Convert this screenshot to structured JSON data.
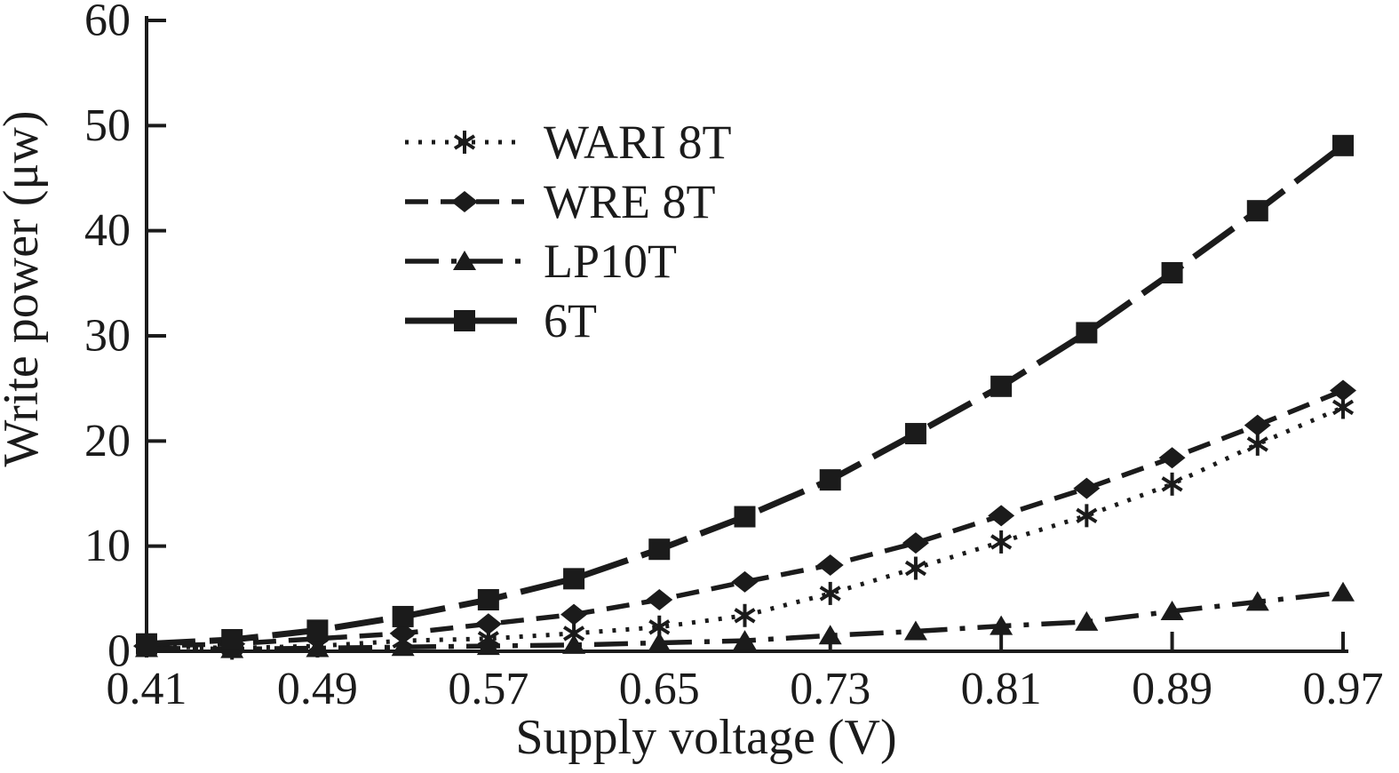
{
  "chart_data": {
    "type": "line",
    "title": "",
    "xlabel": "Supply voltage (V)",
    "ylabel": "Write power (μw)",
    "x": [
      0.41,
      0.45,
      0.49,
      0.53,
      0.57,
      0.61,
      0.65,
      0.69,
      0.73,
      0.77,
      0.81,
      0.85,
      0.89,
      0.93,
      0.97
    ],
    "xlim": [
      0.41,
      0.97
    ],
    "ylim": [
      0,
      60
    ],
    "x_ticks": [
      0.41,
      0.49,
      0.57,
      0.65,
      0.73,
      0.81,
      0.89,
      0.97
    ],
    "x_tick_labels": [
      "0.41",
      "0.49",
      "0.57",
      "0.65",
      "0.73",
      "0.81",
      "0.89",
      "0.97"
    ],
    "y_ticks": [
      0,
      10,
      20,
      30,
      40,
      50,
      60
    ],
    "y_tick_labels": [
      "0",
      "10",
      "20",
      "30",
      "40",
      "50",
      "60"
    ],
    "grid": false,
    "legend_position": "upper-left-inset",
    "series": [
      {
        "name": "WARI 8T",
        "marker": "asterisk",
        "line": "dotted",
        "values": [
          0.5,
          0.3,
          0.5,
          1.0,
          1.2,
          1.7,
          2.3,
          3.4,
          5.5,
          7.9,
          10.4,
          12.9,
          15.9,
          19.7,
          23.2
        ]
      },
      {
        "name": "WRE 8T",
        "marker": "diamond",
        "line": "dashed",
        "values": [
          0.5,
          0.7,
          1.2,
          1.7,
          2.6,
          3.5,
          4.9,
          6.6,
          8.2,
          10.3,
          12.9,
          15.5,
          18.4,
          21.5,
          24.8
        ]
      },
      {
        "name": "LP10T",
        "marker": "triangle",
        "line": "dash-dot",
        "values": [
          0.3,
          0.2,
          0.3,
          0.4,
          0.5,
          0.6,
          0.8,
          1.0,
          1.5,
          1.9,
          2.4,
          2.8,
          3.8,
          4.7,
          5.6
        ]
      },
      {
        "name": "6T",
        "marker": "square",
        "line": "long-dash",
        "values": [
          0.7,
          1.1,
          2.0,
          3.3,
          4.9,
          6.9,
          9.7,
          12.8,
          16.3,
          20.7,
          25.2,
          30.3,
          36.0,
          41.9,
          48.1
        ]
      }
    ],
    "colors": {
      "ink": "#1b1b1b",
      "background": "#ffffff"
    }
  }
}
